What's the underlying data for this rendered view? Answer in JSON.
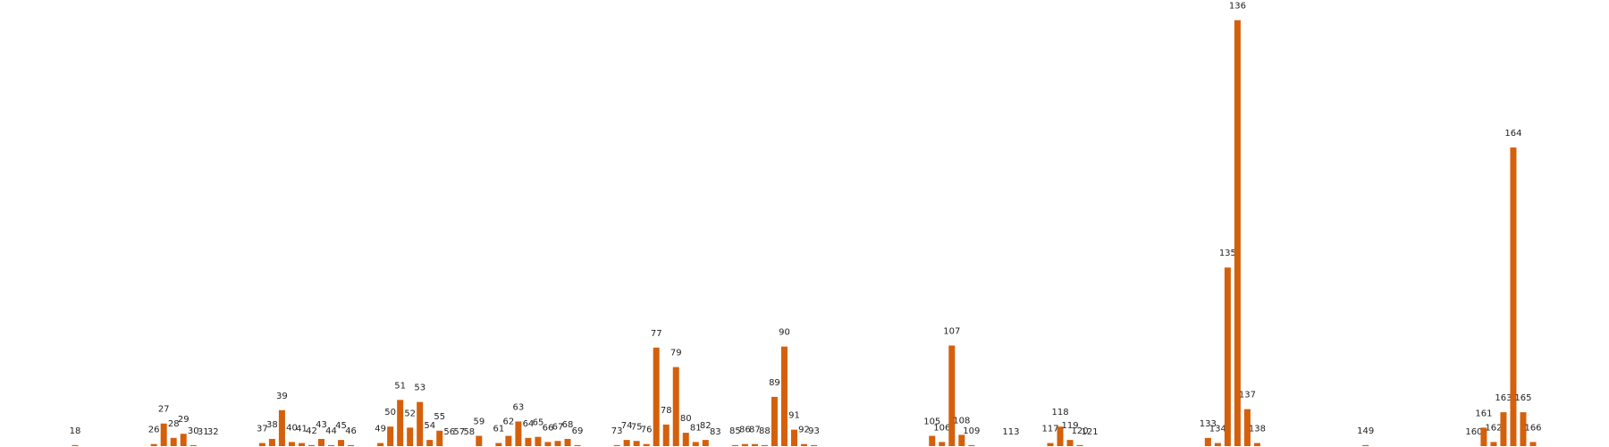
{
  "chart_data": {
    "type": "bar",
    "color": "#d4600c",
    "x": [
      18,
      26,
      27,
      28,
      29,
      30,
      31,
      32,
      37,
      38,
      39,
      40,
      41,
      42,
      43,
      44,
      45,
      46,
      49,
      50,
      51,
      52,
      53,
      54,
      55,
      56,
      57,
      58,
      59,
      61,
      62,
      63,
      64,
      65,
      66,
      67,
      68,
      69,
      73,
      74,
      75,
      76,
      77,
      78,
      79,
      80,
      81,
      82,
      83,
      85,
      86,
      87,
      88,
      89,
      90,
      91,
      92,
      93,
      105,
      106,
      107,
      108,
      109,
      113,
      117,
      118,
      119,
      120,
      121,
      133,
      134,
      135,
      136,
      137,
      138,
      149,
      160,
      161,
      162,
      163,
      164,
      165,
      166
    ],
    "values": [
      1,
      2,
      22,
      8,
      12,
      1,
      0,
      0,
      3,
      7,
      35,
      4,
      3,
      1,
      7,
      1,
      6,
      1,
      3,
      19,
      45,
      18,
      43,
      6,
      15,
      0,
      0,
      0,
      10,
      3,
      10,
      24,
      8,
      9,
      4,
      5,
      7,
      1,
      1,
      6,
      5,
      2,
      96,
      21,
      77,
      13,
      4,
      6,
      0,
      1,
      2,
      2,
      1,
      48,
      97,
      16,
      2,
      1,
      10,
      4,
      98,
      11,
      1,
      0,
      3,
      19,
      6,
      1,
      0,
      8,
      3,
      174,
      415,
      36,
      3,
      1,
      0,
      18,
      4,
      33,
      291,
      33,
      4
    ]
  }
}
